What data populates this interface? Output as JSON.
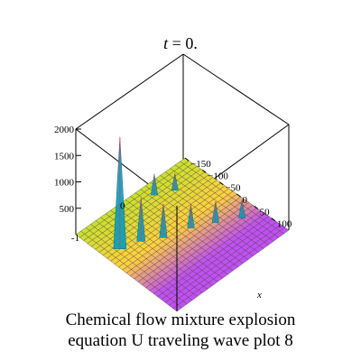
{
  "chart_data": {
    "type": "surface3d",
    "title": "t = 0.",
    "title_var": "t",
    "title_rest": " = 0.",
    "z_ticks": [
      {
        "value": 2000,
        "label": "2000"
      },
      {
        "value": 1500,
        "label": "1500"
      },
      {
        "value": 1000,
        "label": "1000"
      },
      {
        "value": 500,
        "label": "500"
      }
    ],
    "x_ticks": [
      {
        "value": -150,
        "label": "−150"
      },
      {
        "value": -100,
        "label": "−100"
      },
      {
        "value": -50,
        "label": "−50"
      },
      {
        "value": 0,
        "label": "0"
      },
      {
        "value": 50,
        "label": "50"
      },
      {
        "value": 100,
        "label": "100"
      }
    ],
    "y_ticks": [
      {
        "value": -1,
        "label": "-1"
      },
      {
        "value": 0,
        "label": "0"
      }
    ],
    "xlabel": "x",
    "zlim": [
      0,
      2000
    ],
    "peaks": [
      {
        "x": -60,
        "y": -0.9,
        "z": 2100
      },
      {
        "x": -45,
        "y": -0.55,
        "z": 800
      },
      {
        "x": -20,
        "y": -0.25,
        "z": 620
      },
      {
        "x": 0,
        "y": 0.2,
        "z": 430
      },
      {
        "x": 25,
        "y": 0.55,
        "z": 380
      },
      {
        "x": 55,
        "y": 0.9,
        "z": 330
      },
      {
        "x": -120,
        "y": 0.3,
        "z": 380
      },
      {
        "x": -100,
        "y": 0.6,
        "z": 300
      }
    ],
    "colors": {
      "low_x": "#c8e030",
      "mid_x": "#ffd040",
      "high_x": "#c050f0",
      "peak": "#00a0c0",
      "wire": "#3a3a3a"
    }
  },
  "caption": {
    "line1": "Chemical flow mixture explosion",
    "line2": "equation U traveling wave plot 8"
  }
}
